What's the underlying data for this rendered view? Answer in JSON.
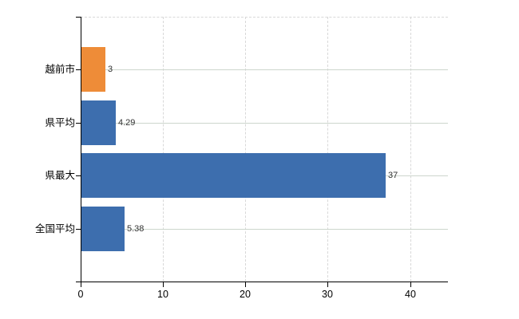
{
  "chart_data": {
    "type": "bar",
    "orientation": "horizontal",
    "title": "",
    "xlabel": "",
    "ylabel": "",
    "categories": [
      "越前市",
      "県平均",
      "県最大",
      "全国平均"
    ],
    "values": [
      3,
      4.29,
      37,
      5.38
    ],
    "value_labels": [
      "3",
      "4.29",
      "37",
      "5.38"
    ],
    "bar_colors": [
      "#ee8c38",
      "#3d6eae",
      "#3d6eae",
      "#3d6eae"
    ],
    "xlim": [
      0,
      44.6
    ],
    "x_ticks": [
      0,
      10,
      20,
      30,
      40
    ],
    "x_tick_labels": [
      "0",
      "10",
      "20",
      "30",
      "40"
    ],
    "grid": {
      "vertical_style": "dashed",
      "horizontal_style": "solid",
      "vertical_on": true,
      "horizontal_on": true
    },
    "legend_position": "none",
    "colors": {
      "bar_blue": "#3d6eae",
      "bar_orange": "#ee8c38",
      "axis": "#000000",
      "grid_vertical": "#d8d8d8",
      "grid_horizontal": "#cdd6cd",
      "value_label_text": "#333333",
      "tick_label_text": "#000000",
      "background": "#ffffff"
    }
  }
}
